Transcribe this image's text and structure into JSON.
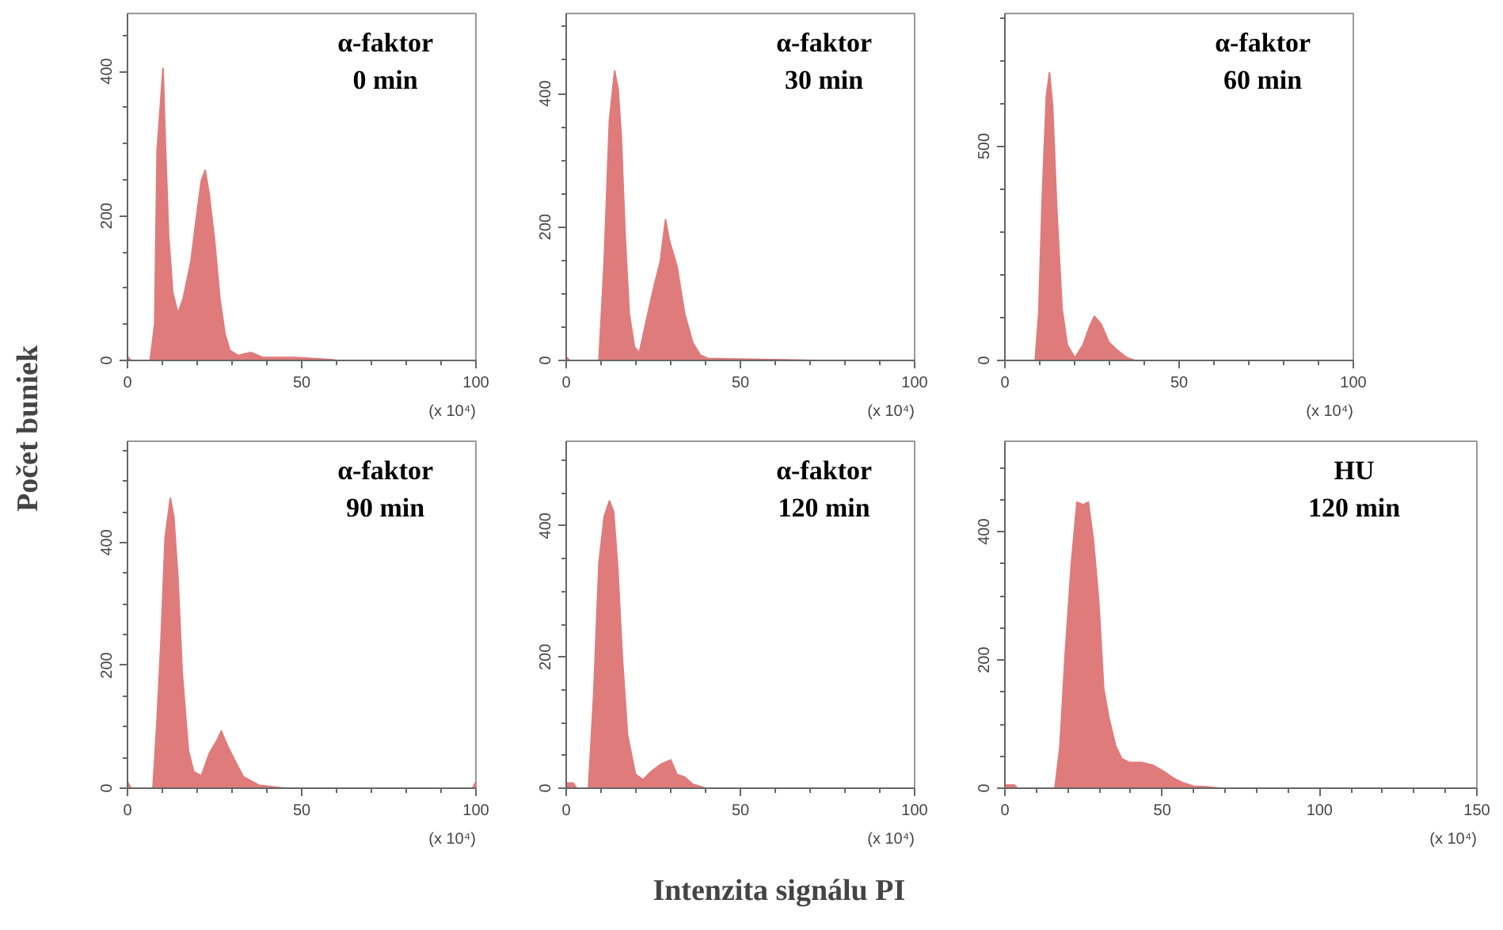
{
  "chart_data": [
    {
      "type": "area",
      "title": "α-faktor\n0 min",
      "xlabel": "(x 10⁴)",
      "ylabel": "Počet buniek",
      "xlim": [
        0,
        100
      ],
      "xticks": [
        0,
        50,
        100
      ],
      "ylim": [
        0,
        480
      ],
      "yticks": [
        0,
        200,
        400
      ],
      "grid": false,
      "series": [
        {
          "color": "#e07b7b",
          "x": [
            0,
            1,
            6.5,
            7.8,
            8.5,
            10.2,
            10.8,
            11.8,
            13,
            14.5,
            16,
            18.2,
            19.7,
            21.2,
            22.3,
            23.4,
            25,
            26.5,
            28,
            29.4,
            31.7,
            35.4,
            39,
            48,
            58.6,
            60,
            100
          ],
          "values": [
            5,
            0,
            0,
            50,
            290,
            404,
            310,
            173,
            94,
            65,
            86,
            137,
            195,
            249,
            263,
            231,
            166,
            86,
            36,
            14,
            7,
            11,
            4,
            4,
            1,
            0,
            0
          ]
        }
      ]
    },
    {
      "type": "area",
      "title": "α-faktor\n30 min",
      "xlabel": "(x 10⁴)",
      "xlim": [
        0,
        100
      ],
      "xticks": [
        0,
        50,
        100
      ],
      "ylim": [
        0,
        520
      ],
      "yticks": [
        0,
        200,
        400
      ],
      "grid": false,
      "series": [
        {
          "color": "#e07b7b",
          "x": [
            0,
            1,
            9.4,
            10.9,
            12.4,
            13.9,
            14.9,
            15.8,
            16.9,
            18.1,
            19.6,
            21,
            22.8,
            25.1,
            27,
            28.5,
            29.6,
            31.8,
            34,
            36.3,
            38.5,
            40.7,
            49.7,
            63,
            70.6,
            100
          ],
          "values": [
            5,
            0,
            0,
            148,
            359,
            434,
            406,
            336,
            188,
            70,
            20,
            12,
            55,
            109,
            148,
            211,
            180,
            141,
            70,
            27,
            8,
            3,
            2,
            1,
            0,
            0
          ]
        }
      ]
    },
    {
      "type": "area",
      "title": "α-faktor\n60 min",
      "xlabel": "(x 10⁴)",
      "xlim": [
        0,
        100
      ],
      "xticks": [
        0,
        50,
        100
      ],
      "ylim": [
        0,
        810
      ],
      "yticks": [
        0,
        500
      ],
      "grid": false,
      "series": [
        {
          "color": "#e07b7b",
          "x": [
            0,
            8.7,
            9.7,
            10.7,
            11.9,
            12.8,
            13.7,
            14.9,
            16.4,
            17.9,
            20.1,
            22.4,
            24.3,
            25.7,
            27.6,
            29.9,
            32.5,
            35.1,
            37.3,
            100
          ],
          "values": [
            0,
            0,
            109,
            375,
            617,
            672,
            593,
            351,
            121,
            36,
            6,
            36,
            79,
            103,
            85,
            42,
            22,
            6,
            0,
            0
          ]
        }
      ]
    },
    {
      "type": "area",
      "title": "α-faktor\n90 min",
      "xlabel": "(x 10⁴)",
      "xlim": [
        0,
        100
      ],
      "xticks": [
        0,
        50,
        100
      ],
      "ylim": [
        0,
        565
      ],
      "yticks": [
        0,
        200,
        400
      ],
      "grid": false,
      "series": [
        {
          "color": "#e07b7b",
          "x": [
            0,
            1,
            7.3,
            8.5,
            9.6,
            10.8,
            12.3,
            13.3,
            14.5,
            15.7,
            17.5,
            19,
            21.2,
            23.5,
            25.7,
            26.9,
            28.7,
            30.9,
            33.2,
            35.4,
            37.7,
            43.6,
            45,
            99,
            100
          ],
          "values": [
            10,
            0,
            0,
            112,
            239,
            408,
            472,
            442,
            340,
            188,
            61,
            27,
            20,
            57,
            78,
            93,
            69,
            44,
            19,
            12,
            5,
            1,
            0,
            0,
            10
          ]
        }
      ]
    },
    {
      "type": "area",
      "title": "α-faktor\n120 min",
      "xlabel": "(x 10⁴)",
      "xlim": [
        0,
        100
      ],
      "xticks": [
        0,
        50,
        100
      ],
      "ylim": [
        0,
        529
      ],
      "yticks": [
        0,
        200,
        400
      ],
      "grid": false,
      "annotations": [
        "Intenzita signálu PI"
      ],
      "series": [
        {
          "color": "#e07b7b",
          "x": [
            0,
            2,
            3,
            6.4,
            7.9,
            9.4,
            10.9,
            12.4,
            13.6,
            14.8,
            16.1,
            17.6,
            19.9,
            22.1,
            24.3,
            27.3,
            30,
            31.8,
            34,
            36.3,
            40,
            100
          ],
          "values": [
            8,
            8,
            0,
            0,
            144,
            343,
            414,
            438,
            422,
            335,
            200,
            81,
            21,
            13,
            25,
            37,
            43,
            21,
            17,
            6,
            0,
            0
          ]
        }
      ]
    },
    {
      "type": "area",
      "title": "HU\n120 min",
      "xlabel": "(x 10⁴)",
      "xlim": [
        0,
        150
      ],
      "xticks": [
        0,
        50,
        100,
        150
      ],
      "ylim": [
        0,
        541
      ],
      "yticks": [
        0,
        200,
        400
      ],
      "grid": false,
      "series": [
        {
          "color": "#e07b7b",
          "x": [
            0,
            3,
            4,
            15.9,
            17.5,
            19.1,
            21.1,
            22.9,
            24.9,
            26.5,
            28.1,
            29.8,
            31.4,
            33,
            35.2,
            37.1,
            39.6,
            43.7,
            47,
            50.2,
            53.5,
            56.8,
            60,
            64.9,
            68.2,
            150
          ],
          "values": [
            5,
            5,
            0,
            0,
            66,
            204,
            349,
            446,
            442,
            446,
            388,
            293,
            155,
            111,
            66,
            46,
            40,
            40,
            36,
            27,
            16,
            8,
            3,
            2,
            0,
            0
          ]
        }
      ]
    }
  ]
}
